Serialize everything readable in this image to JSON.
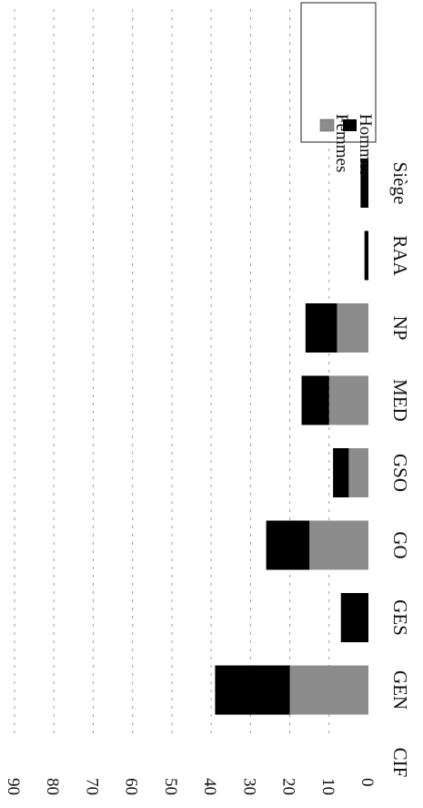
{
  "chart_data": {
    "type": "bar",
    "stacked": true,
    "orientation": "rotated-90-clockwise",
    "categories": [
      "CIF",
      "GEN",
      "GES",
      "GO",
      "GSO",
      "MED",
      "NP",
      "RAA",
      "Siège"
    ],
    "series": [
      {
        "name": "Femmes",
        "color": "#8c8c8c",
        "values": [
          0,
          20,
          0,
          15,
          5,
          10,
          8,
          0,
          0
        ]
      },
      {
        "name": "Hommes",
        "color": "#000000",
        "values": [
          0,
          19,
          7,
          11,
          4,
          7,
          8,
          1,
          2
        ]
      }
    ],
    "y_ticks": [
      "0",
      "10",
      "20",
      "30",
      "40",
      "50",
      "60",
      "70",
      "80",
      "90"
    ],
    "ylim": [
      0,
      90
    ],
    "legend_position": "top-right",
    "grid": true
  }
}
